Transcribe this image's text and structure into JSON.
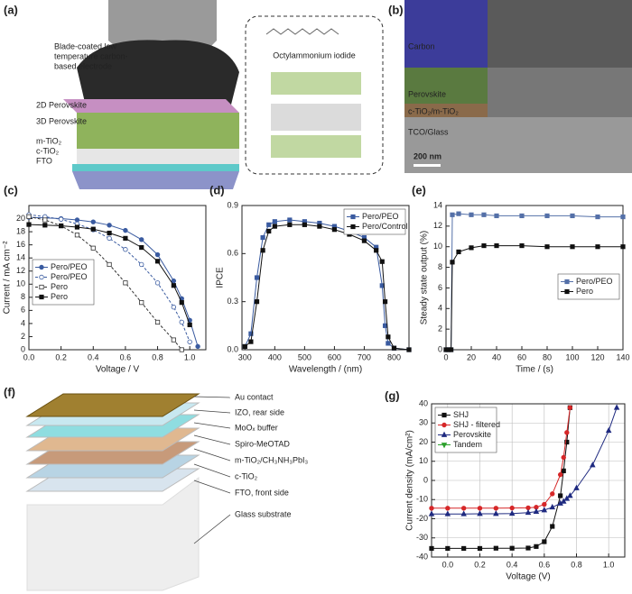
{
  "panels": {
    "a": {
      "label": "(a)",
      "electrode": [
        "Blade-coated low",
        "temperature carbon-",
        "based electrode"
      ],
      "molecule": "Octylammonium iodide",
      "layers": [
        "2D Perovskite",
        "3D Perovskite",
        "m-TiO₂",
        "c-TiO₂",
        "FTO"
      ]
    },
    "b": {
      "label": "(b)",
      "layers": [
        "Carbon",
        "Perovskite",
        "c-TiO₂/m-TiO₂",
        "TCO/Glass"
      ],
      "scale": "200 nm"
    },
    "f": {
      "label": "(f)",
      "layers": [
        "Au contact",
        "IZO, rear side",
        "MoOₓ buffer",
        "Spiro-MeOTAD",
        "m-TiO₂/CH₃NH₃PbI₃",
        "c-TiO₂",
        "FTO, front side",
        "Glass substrate"
      ]
    }
  },
  "chart_data": [
    {
      "type": "line",
      "panel_label": "(c)",
      "xlabel": "Voltage / V",
      "ylabel": "Current / mA cm⁻²",
      "x": [
        0,
        0.1,
        0.2,
        0.3,
        0.4,
        0.5,
        0.6,
        0.7,
        0.8,
        0.9,
        0.95,
        1.0,
        1.05
      ],
      "series": [
        {
          "name": "Pero/PEO",
          "color": "#3a5ba0",
          "marker": "circle",
          "filled": true,
          "dashed": false,
          "values": [
            20.2,
            20.1,
            20.0,
            19.8,
            19.5,
            19.0,
            18.2,
            16.8,
            14.5,
            10.5,
            7.8,
            4.5,
            0.5
          ]
        },
        {
          "name": "Pero/PEO",
          "color": "#3a5ba0",
          "marker": "circle",
          "filled": false,
          "dashed": true,
          "values": [
            20.6,
            20.3,
            19.9,
            19.2,
            18.3,
            17.0,
            15.3,
            13.0,
            10.2,
            6.5,
            4.2,
            1.2,
            null
          ]
        },
        {
          "name": "Pero",
          "color": "#333333",
          "marker": "square",
          "filled": false,
          "dashed": true,
          "values": [
            20.3,
            19.8,
            18.9,
            17.5,
            15.5,
            13.0,
            10.2,
            7.2,
            4.2,
            1.5,
            0,
            null,
            null
          ]
        },
        {
          "name": "Pero",
          "color": "#111111",
          "marker": "square",
          "filled": true,
          "dashed": false,
          "values": [
            19.1,
            19.0,
            18.9,
            18.7,
            18.4,
            17.8,
            17.0,
            15.6,
            13.5,
            9.8,
            7.2,
            3.8,
            null
          ]
        }
      ],
      "xlim": [
        0,
        1.1
      ],
      "xticks": [
        {
          "value": 0,
          "label": "0.0"
        },
        0.2,
        0.4,
        0.6,
        0.8,
        {
          "value": 1,
          "label": "1.0"
        }
      ],
      "ylim": [
        0,
        22
      ],
      "yticks": [
        0,
        2,
        4,
        6,
        8,
        10,
        12,
        14,
        16,
        18,
        20
      ],
      "grid": false,
      "legend": "lower left"
    },
    {
      "type": "line",
      "panel_label": "(d)",
      "xlabel": "Wavelength / (nm)",
      "ylabel": "IPCE",
      "x": [
        300,
        320,
        340,
        360,
        380,
        400,
        450,
        500,
        550,
        600,
        650,
        700,
        740,
        760,
        770,
        780,
        800,
        850
      ],
      "series": [
        {
          "name": "Pero/PEO",
          "color": "#3a5ba0",
          "marker": "square",
          "filled": true,
          "dashed": false,
          "values": [
            0.02,
            0.1,
            0.45,
            0.7,
            0.78,
            0.8,
            0.81,
            0.8,
            0.79,
            0.77,
            0.74,
            0.7,
            0.64,
            0.4,
            0.15,
            0.04,
            0.01,
            0
          ]
        },
        {
          "name": "Pero/Control",
          "color": "#111111",
          "marker": "square",
          "filled": true,
          "dashed": false,
          "values": [
            0.02,
            0.05,
            0.3,
            0.62,
            0.74,
            0.77,
            0.78,
            0.78,
            0.77,
            0.75,
            0.72,
            0.68,
            0.62,
            0.55,
            0.3,
            0.08,
            0.01,
            0
          ]
        }
      ],
      "xlim": [
        290,
        850
      ],
      "xticks": [
        300,
        400,
        500,
        600,
        700,
        800
      ],
      "ylim": [
        0,
        0.9
      ],
      "yticks": [
        {
          "value": 0,
          "label": "0.0"
        },
        0.3,
        0.6,
        0.9
      ],
      "grid": false,
      "legend": "upper right"
    },
    {
      "type": "line",
      "panel_label": "(e)",
      "xlabel": "Time / (s)",
      "ylabel": "Steady state output (%)",
      "x": [
        0,
        2,
        4,
        5,
        10,
        20,
        30,
        40,
        60,
        80,
        100,
        120,
        140
      ],
      "series": [
        {
          "name": "Pero/PEO",
          "color": "#5470a8",
          "marker": "square",
          "filled": true,
          "dashed": false,
          "values": [
            0,
            0,
            0,
            13.1,
            13.2,
            13.1,
            13.1,
            13.0,
            13.0,
            13.0,
            13.0,
            12.9,
            12.9
          ]
        },
        {
          "name": "Pero",
          "color": "#111111",
          "marker": "square",
          "filled": true,
          "dashed": false,
          "values": [
            0,
            0,
            0,
            8.5,
            9.5,
            9.9,
            10.1,
            10.1,
            10.1,
            10.0,
            10.0,
            10.0,
            10.0
          ]
        }
      ],
      "xlim": [
        0,
        140
      ],
      "xticks": [
        0,
        20,
        40,
        60,
        80,
        100,
        120,
        140
      ],
      "ylim": [
        0,
        14
      ],
      "yticks": [
        0,
        2,
        4,
        6,
        8,
        10,
        12,
        14
      ],
      "grid": false,
      "legend": "center right"
    },
    {
      "type": "line",
      "panel_label": "(g)",
      "xlabel": "Voltage (V)",
      "ylabel": "Current density (mA/cm²)",
      "x": [
        -0.1,
        0,
        0.1,
        0.2,
        0.3,
        0.4,
        0.5,
        0.55,
        0.6,
        0.65,
        0.7,
        0.72,
        0.74,
        0.76,
        0.8,
        0.9,
        1.0,
        1.05
      ],
      "series": [
        {
          "name": "SHJ",
          "color": "#111111",
          "marker": "square",
          "filled": true,
          "dashed": false,
          "values": [
            -35.5,
            -35.5,
            -35.5,
            -35.5,
            -35.4,
            -35.4,
            -35.3,
            -34.5,
            -32,
            -24,
            -8,
            5,
            20,
            38,
            null,
            null,
            null,
            null
          ]
        },
        {
          "name": "SHJ - filtered",
          "color": "#d62728",
          "marker": "circle",
          "filled": true,
          "dashed": false,
          "values": [
            -14.5,
            -14.5,
            -14.5,
            -14.5,
            -14.5,
            -14.4,
            -14.3,
            -14,
            -12.5,
            -7,
            3,
            12,
            25,
            38,
            null,
            null,
            null,
            null
          ]
        },
        {
          "name": "Perovskite",
          "color": "#1f2a80",
          "marker": "triangle",
          "filled": true,
          "dashed": false,
          "values": [
            -17.5,
            -17.5,
            -17.5,
            -17.4,
            -17.4,
            -17.3,
            -16.8,
            -16.3,
            -15.5,
            -14,
            -12,
            -11,
            -9.5,
            -8,
            -4,
            8,
            26,
            38
          ]
        },
        {
          "name": "Tandem",
          "color": "#2ca02c",
          "marker": "triangle-down",
          "filled": true,
          "dashed": false,
          "values": [
            null,
            null,
            null,
            null,
            null,
            null,
            null,
            null,
            null,
            null,
            null,
            null,
            null,
            null,
            null,
            null,
            null,
            null
          ]
        }
      ],
      "xlim": [
        -0.1,
        1.1
      ],
      "xticks": [
        {
          "value": 0,
          "label": "0.0"
        },
        0.2,
        0.4,
        0.6,
        0.8,
        {
          "value": 1,
          "label": "1.0"
        }
      ],
      "ylim": [
        -40,
        40
      ],
      "yticks": [
        -40,
        -30,
        -20,
        -10,
        0,
        10,
        20,
        30,
        40
      ],
      "grid": true,
      "legend": "upper left"
    }
  ]
}
